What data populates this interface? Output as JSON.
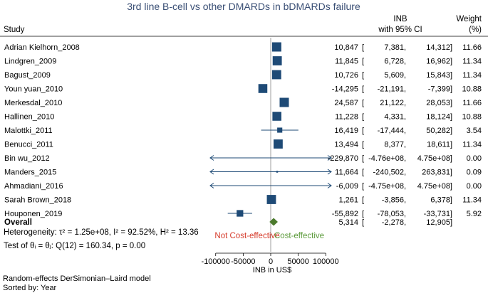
{
  "chart_data": {
    "type": "forest",
    "title": "3rd line B-cell vs other DMARDs in bDMARDs failure",
    "header": {
      "study": "Study",
      "inb_line1": "INB",
      "inb_line2": "with 95% CI",
      "weight_line1": "Weight",
      "weight_line2": "(%)"
    },
    "studies": [
      {
        "name": "Adrian Kielhorn_2008",
        "est": 10847,
        "lo": 7381,
        "hi": 14312,
        "est_text": "10,847",
        "lo_text": "7,381,",
        "hi_text": "14,312]",
        "weight": 11.66,
        "weight_text": "11.66"
      },
      {
        "name": "Lindgren_2009",
        "est": 11845,
        "lo": 6728,
        "hi": 16962,
        "est_text": "11,845",
        "lo_text": "6,728,",
        "hi_text": "16,962]",
        "weight": 11.34,
        "weight_text": "11.34"
      },
      {
        "name": "Bagust_2009",
        "est": 10726,
        "lo": 5609,
        "hi": 15843,
        "est_text": "10,726",
        "lo_text": "5,609,",
        "hi_text": "15,843]",
        "weight": 11.34,
        "weight_text": "11.34"
      },
      {
        "name": "Youn yuan_2010",
        "est": -14295,
        "lo": -21191,
        "hi": -7399,
        "est_text": "-14,295",
        "lo_text": "-21,191,",
        "hi_text": "-7,399]",
        "weight": 10.88,
        "weight_text": "10.88"
      },
      {
        "name": "Merkesdal_2010",
        "est": 24587,
        "lo": 21122,
        "hi": 28053,
        "est_text": "24,587",
        "lo_text": "21,122,",
        "hi_text": "28,053]",
        "weight": 11.66,
        "weight_text": "11.66"
      },
      {
        "name": "Hallinen_2010",
        "est": 11228,
        "lo": 4331,
        "hi": 18124,
        "est_text": "11,228",
        "lo_text": "4,331,",
        "hi_text": "18,124]",
        "weight": 10.88,
        "weight_text": "10.88"
      },
      {
        "name": "Malottki_2011",
        "est": 16419,
        "lo": -17444,
        "hi": 50282,
        "est_text": "16,419",
        "lo_text": "-17,444,",
        "hi_text": "50,282]",
        "weight": 3.54,
        "weight_text": "3.54"
      },
      {
        "name": "Benucci_2011",
        "est": 13494,
        "lo": 8377,
        "hi": 18611,
        "est_text": "13,494",
        "lo_text": "8,377,",
        "hi_text": "18,611]",
        "weight": 11.34,
        "weight_text": "11.34"
      },
      {
        "name": "Bin wu_2012",
        "est": -229870,
        "lo": -476000000,
        "hi": 475000000,
        "est_text": "-229,870",
        "lo_text": "-4.76e+08,",
        "hi_text": "4.75e+08]",
        "weight": 0.0,
        "weight_text": "0.00"
      },
      {
        "name": "Manders_2015",
        "est": 11664,
        "lo": -240502,
        "hi": 263831,
        "est_text": "11,664",
        "lo_text": "-240,502,",
        "hi_text": "263,831]",
        "weight": 0.09,
        "weight_text": "0.09"
      },
      {
        "name": "Ahmadiani_2016",
        "est": -6009,
        "lo": -475000000,
        "hi": 475000000,
        "est_text": "-6,009",
        "lo_text": "-4.75e+08,",
        "hi_text": "4.75e+08]",
        "weight": 0.0,
        "weight_text": "0.00"
      },
      {
        "name": "Sarah Brown_2018",
        "est": 1261,
        "lo": -3856,
        "hi": 6378,
        "est_text": "1,261",
        "lo_text": "-3,856,",
        "hi_text": "6,378]",
        "weight": 11.34,
        "weight_text": "11.34"
      },
      {
        "name": "Houponen_2019",
        "est": -55892,
        "lo": -78053,
        "hi": -33731,
        "est_text": "-55,892",
        "lo_text": "-78,053,",
        "hi_text": "-33,731]",
        "weight": 5.92,
        "weight_text": "5.92"
      }
    ],
    "overall": {
      "name": "Overall",
      "est": 5314,
      "lo": -2278,
      "hi": 12905,
      "est_text": "5,314",
      "lo_text": "-2,278,",
      "hi_text": "12,905]"
    },
    "heterogeneity": {
      "label": "Heterogeneity: ",
      "tau2": "τ² = 1.25e+08",
      "i2": "I² = 92.52%",
      "h2": "H² = 13.36"
    },
    "test": "Test of θᵢ = θⱼ: Q(12) = 160.34, p = 0.00",
    "annotations": {
      "left": "Not Cost-effective",
      "right": "Cost-effective"
    },
    "x_axis": {
      "label": "INB in US$",
      "ticks": [
        -100000,
        -50000,
        0,
        50000,
        100000
      ],
      "tick_labels": [
        "-100000",
        "-50000",
        "0",
        "50000",
        "100000"
      ],
      "range": [
        -110000,
        110000
      ]
    },
    "footnotes": [
      "Random-effects DerSimonian–Laird model",
      "Sorted by: Year"
    ],
    "colors": {
      "title": "#3a4f75",
      "marker": "#1e4a76",
      "line": "#1e4a76",
      "diamond": "#4b7a2c",
      "not_cost_effective": "#d63c2c",
      "cost_effective": "#5b9a3a",
      "zero_line": "#888888"
    }
  }
}
